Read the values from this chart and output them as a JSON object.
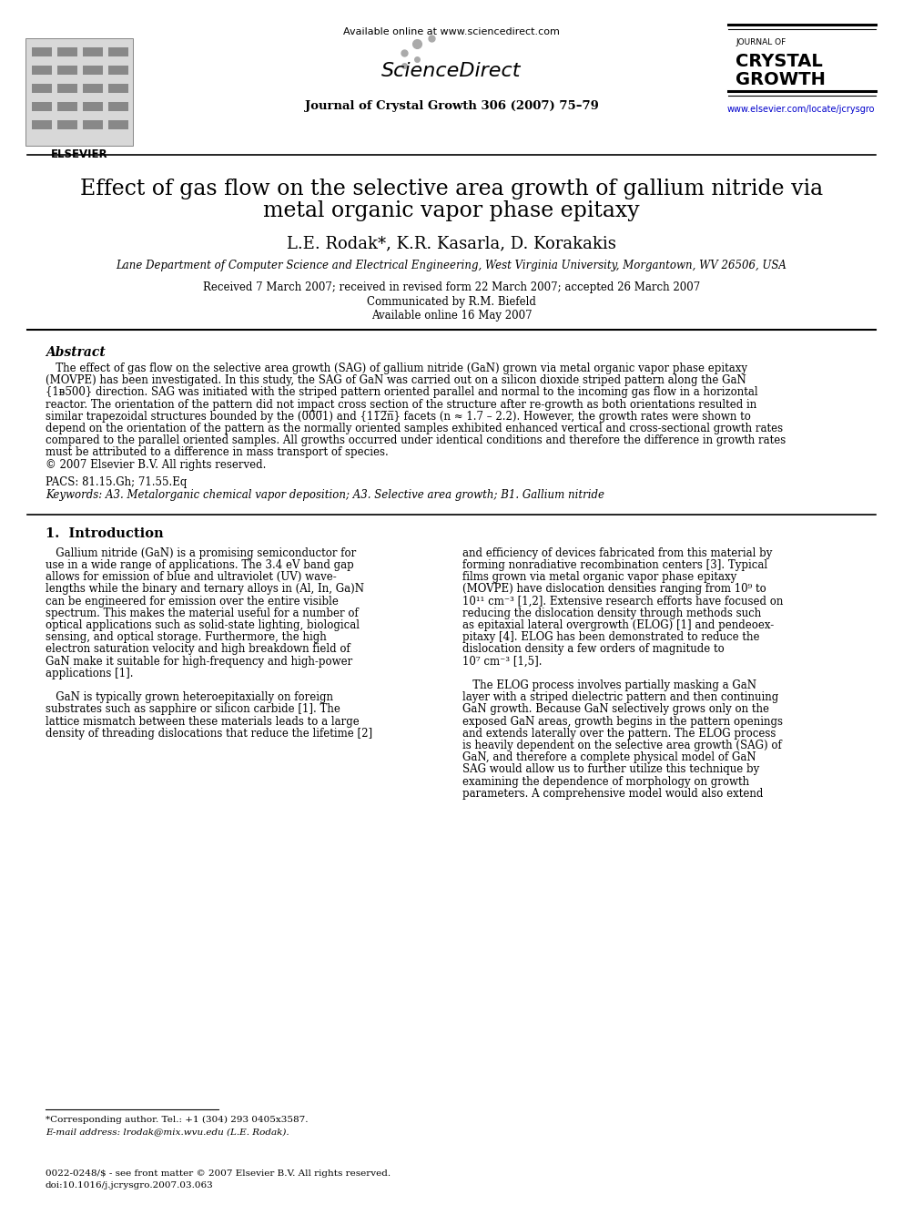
{
  "page_bg": "#ffffff",
  "header_available": "Available online at www.sciencedirect.com",
  "header_journal_line": "Journal of Crystal Growth 306 (2007) 75–79",
  "header_website": "www.elsevier.com/locate/jcrysgro",
  "header_website_color": "#0000cc",
  "title_line1": "Effect of gas flow on the selective area growth of gallium nitride via",
  "title_line2": "metal organic vapor phase epitaxy",
  "authors": "L.E. Rodak*, K.R. Kasarla, D. Korakakis",
  "affiliation": "Lane Department of Computer Science and Electrical Engineering, West Virginia University, Morgantown, WV 26506, USA",
  "received": "Received 7 March 2007; received in revised form 22 March 2007; accepted 26 March 2007",
  "communicated": "Communicated by R.M. Biefeld",
  "available": "Available online 16 May 2007",
  "abstract_title": "Abstract",
  "abstract_lines": [
    "   The effect of gas flow on the selective area growth (SAG) of gallium nitride (GaN) grown via metal organic vapor phase epitaxy",
    "(MOVPE) has been investigated. In this study, the SAG of GaN was carried out on a silicon dioxide striped pattern along the GaN",
    "{1ᴃ5̅00} direction. SAG was initiated with the striped pattern oriented parallel and normal to the incoming gas flow in a horizontal",
    "reactor. The orientation of the pattern did not impact cross section of the structure after re-growth as both orientations resulted in",
    "similar trapezoidal structures bounded by the (0̅0̅0̅1) and {11̅2̅n̅} facets (n ≈ 1.7 – 2.2). However, the growth rates were shown to",
    "depend on the orientation of the pattern as the normally oriented samples exhibited enhanced vertical and cross-sectional growth rates",
    "compared to the parallel oriented samples. All growths occurred under identical conditions and therefore the difference in growth rates",
    "must be attributed to a difference in mass transport of species.",
    "© 2007 Elsevier B.V. All rights reserved."
  ],
  "pacs": "PACS: 81.15.Gh; 71.55.Eq",
  "keywords": "Keywords: A3. Metalorganic chemical vapor deposition; A3. Selective area growth; B1. Gallium nitride",
  "section1_title": "1.  Introduction",
  "col1_lines": [
    "   Gallium nitride (GaN) is a promising semiconductor for",
    "use in a wide range of applications. The 3.4 eV band gap",
    "allows for emission of blue and ultraviolet (UV) wave-",
    "lengths while the binary and ternary alloys in (Al, In, Ga)N",
    "can be engineered for emission over the entire visible",
    "spectrum. This makes the material useful for a number of",
    "optical applications such as solid-state lighting, biological",
    "sensing, and optical storage. Furthermore, the high",
    "electron saturation velocity and high breakdown field of",
    "GaN make it suitable for high-frequency and high-power",
    "applications [1].",
    "",
    "   GaN is typically grown heteroepitaxially on foreign",
    "substrates such as sapphire or silicon carbide [1]. The",
    "lattice mismatch between these materials leads to a large",
    "density of threading dislocations that reduce the lifetime [2]"
  ],
  "col2_lines": [
    "and efficiency of devices fabricated from this material by",
    "forming nonradiative recombination centers [3]. Typical",
    "films grown via metal organic vapor phase epitaxy",
    "(MOVPE) have dislocation densities ranging from 10⁹ to",
    "10¹¹ cm⁻³ [1,2]. Extensive research efforts have focused on",
    "reducing the dislocation density through methods such",
    "as epitaxial lateral overgrowth (ELOG) [1] and pendeoex-",
    "pitaxy [4]. ELOG has been demonstrated to reduce the",
    "dislocation density a few orders of magnitude to",
    "10⁷ cm⁻³ [1,5].",
    "",
    "   The ELOG process involves partially masking a GaN",
    "layer with a striped dielectric pattern and then continuing",
    "GaN growth. Because GaN selectively grows only on the",
    "exposed GaN areas, growth begins in the pattern openings",
    "and extends laterally over the pattern. The ELOG process",
    "is heavily dependent on the selective area growth (SAG) of",
    "GaN, and therefore a complete physical model of GaN",
    "SAG would allow us to further utilize this technique by",
    "examining the dependence of morphology on growth",
    "parameters. A comprehensive model would also extend"
  ],
  "footnote_line1": "*Corresponding author. Tel.: +1 (304) 293 0405x3587.",
  "footnote_line2": "E-mail address: lrodak@mix.wvu.edu (L.E. Rodak).",
  "footer_line1": "0022-0248/$ - see front matter © 2007 Elsevier B.V. All rights reserved.",
  "footer_line2": "doi:10.1016/j.jcrysgro.2007.03.063"
}
